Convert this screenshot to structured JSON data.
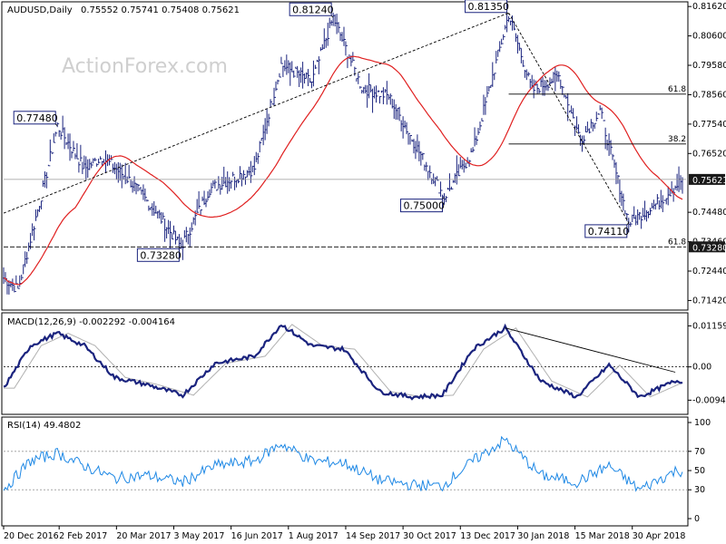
{
  "watermark": "ActionForex.com",
  "chart_data": [
    {
      "type": "candlestick",
      "symbol": "AUDUSD,Daily",
      "ohlc_header": "0.75552 0.75741 0.75408 0.75621",
      "ylim": [
        0.7115,
        0.8172
      ],
      "yticks": [
        "0.81620",
        "0.80600",
        "0.79580",
        "0.78560",
        "0.77540",
        "0.76520",
        "0.74480",
        "0.73460",
        "0.72440",
        "0.71420"
      ],
      "last_price": {
        "label": "0.75621",
        "value": 0.75621
      },
      "level_tags": [
        {
          "label": "0.73280",
          "value": 0.7328
        }
      ],
      "ma_color": "#e02020",
      "bar_color": "#1a237e",
      "annotations": [
        {
          "label": "0.77480",
          "value": 0.7748,
          "date_index": 30
        },
        {
          "label": "0.73280",
          "value": 0.7328,
          "date_index": 99
        },
        {
          "label": "0.81240",
          "value": 0.8124,
          "date_index": 184
        },
        {
          "label": "0.75000",
          "value": 0.75,
          "date_index": 246
        },
        {
          "label": "0.81350",
          "value": 0.8135,
          "date_index": 282
        },
        {
          "label": "0.74110",
          "value": 0.7411,
          "date_index": 349
        }
      ],
      "fib_levels": [
        {
          "label": "61.8",
          "value": 0.7858
        },
        {
          "label": "38.2",
          "value": 0.7685
        },
        {
          "label": "61.8",
          "value": 0.7328
        }
      ],
      "x_labels": [
        "20 Dec 2016",
        "2 Feb 2017",
        "20 Mar 2017",
        "3 May 2017",
        "16 Jun 2017",
        "1 Aug 2017",
        "14 Sep 2017",
        "30 Oct 2017",
        "13 Dec 2017",
        "30 Jan 2018",
        "15 Mar 2018",
        "30 Apr 2018"
      ]
    },
    {
      "type": "line",
      "indicator": "MACD(12,26,9) -0.002292 -0.004164",
      "ylim": [
        -0.0129,
        0.014
      ],
      "yticks": [
        "0.01159",
        "0.00",
        "-0.009408"
      ],
      "macd_color": "#1a237e",
      "signal_color": "#b0b0b0",
      "macd": [
        {
          "x": 0,
          "y": -0.006
        },
        {
          "x": 15,
          "y": 0.006
        },
        {
          "x": 30,
          "y": 0.0095
        },
        {
          "x": 45,
          "y": 0.006
        },
        {
          "x": 62,
          "y": -0.003
        },
        {
          "x": 80,
          "y": -0.005
        },
        {
          "x": 100,
          "y": -0.008
        },
        {
          "x": 118,
          "y": 0.001
        },
        {
          "x": 140,
          "y": 0.003
        },
        {
          "x": 155,
          "y": 0.012
        },
        {
          "x": 172,
          "y": 0.006
        },
        {
          "x": 190,
          "y": 0.005
        },
        {
          "x": 210,
          "y": -0.007
        },
        {
          "x": 228,
          "y": -0.0085
        },
        {
          "x": 245,
          "y": -0.008
        },
        {
          "x": 262,
          "y": 0.005
        },
        {
          "x": 280,
          "y": 0.011
        },
        {
          "x": 300,
          "y": -0.004
        },
        {
          "x": 320,
          "y": -0.0085
        },
        {
          "x": 338,
          "y": 0.0005
        },
        {
          "x": 355,
          "y": -0.0085
        },
        {
          "x": 375,
          "y": -0.004
        }
      ]
    },
    {
      "type": "line",
      "indicator": "RSI(14) 49.4802",
      "ylim": [
        0,
        100
      ],
      "yticks": [
        "100",
        "70",
        "50",
        "30",
        "0"
      ],
      "rsi_color": "#1e88e5",
      "levels": [
        70,
        30
      ],
      "rsi": [
        {
          "x": 0,
          "y": 30
        },
        {
          "x": 15,
          "y": 60
        },
        {
          "x": 30,
          "y": 68
        },
        {
          "x": 45,
          "y": 55
        },
        {
          "x": 62,
          "y": 42
        },
        {
          "x": 80,
          "y": 45
        },
        {
          "x": 100,
          "y": 38
        },
        {
          "x": 118,
          "y": 55
        },
        {
          "x": 140,
          "y": 60
        },
        {
          "x": 155,
          "y": 78
        },
        {
          "x": 172,
          "y": 60
        },
        {
          "x": 190,
          "y": 58
        },
        {
          "x": 210,
          "y": 40
        },
        {
          "x": 228,
          "y": 35
        },
        {
          "x": 245,
          "y": 34
        },
        {
          "x": 262,
          "y": 60
        },
        {
          "x": 280,
          "y": 82
        },
        {
          "x": 300,
          "y": 45
        },
        {
          "x": 320,
          "y": 38
        },
        {
          "x": 338,
          "y": 55
        },
        {
          "x": 355,
          "y": 30
        },
        {
          "x": 375,
          "y": 49.48
        }
      ]
    }
  ]
}
